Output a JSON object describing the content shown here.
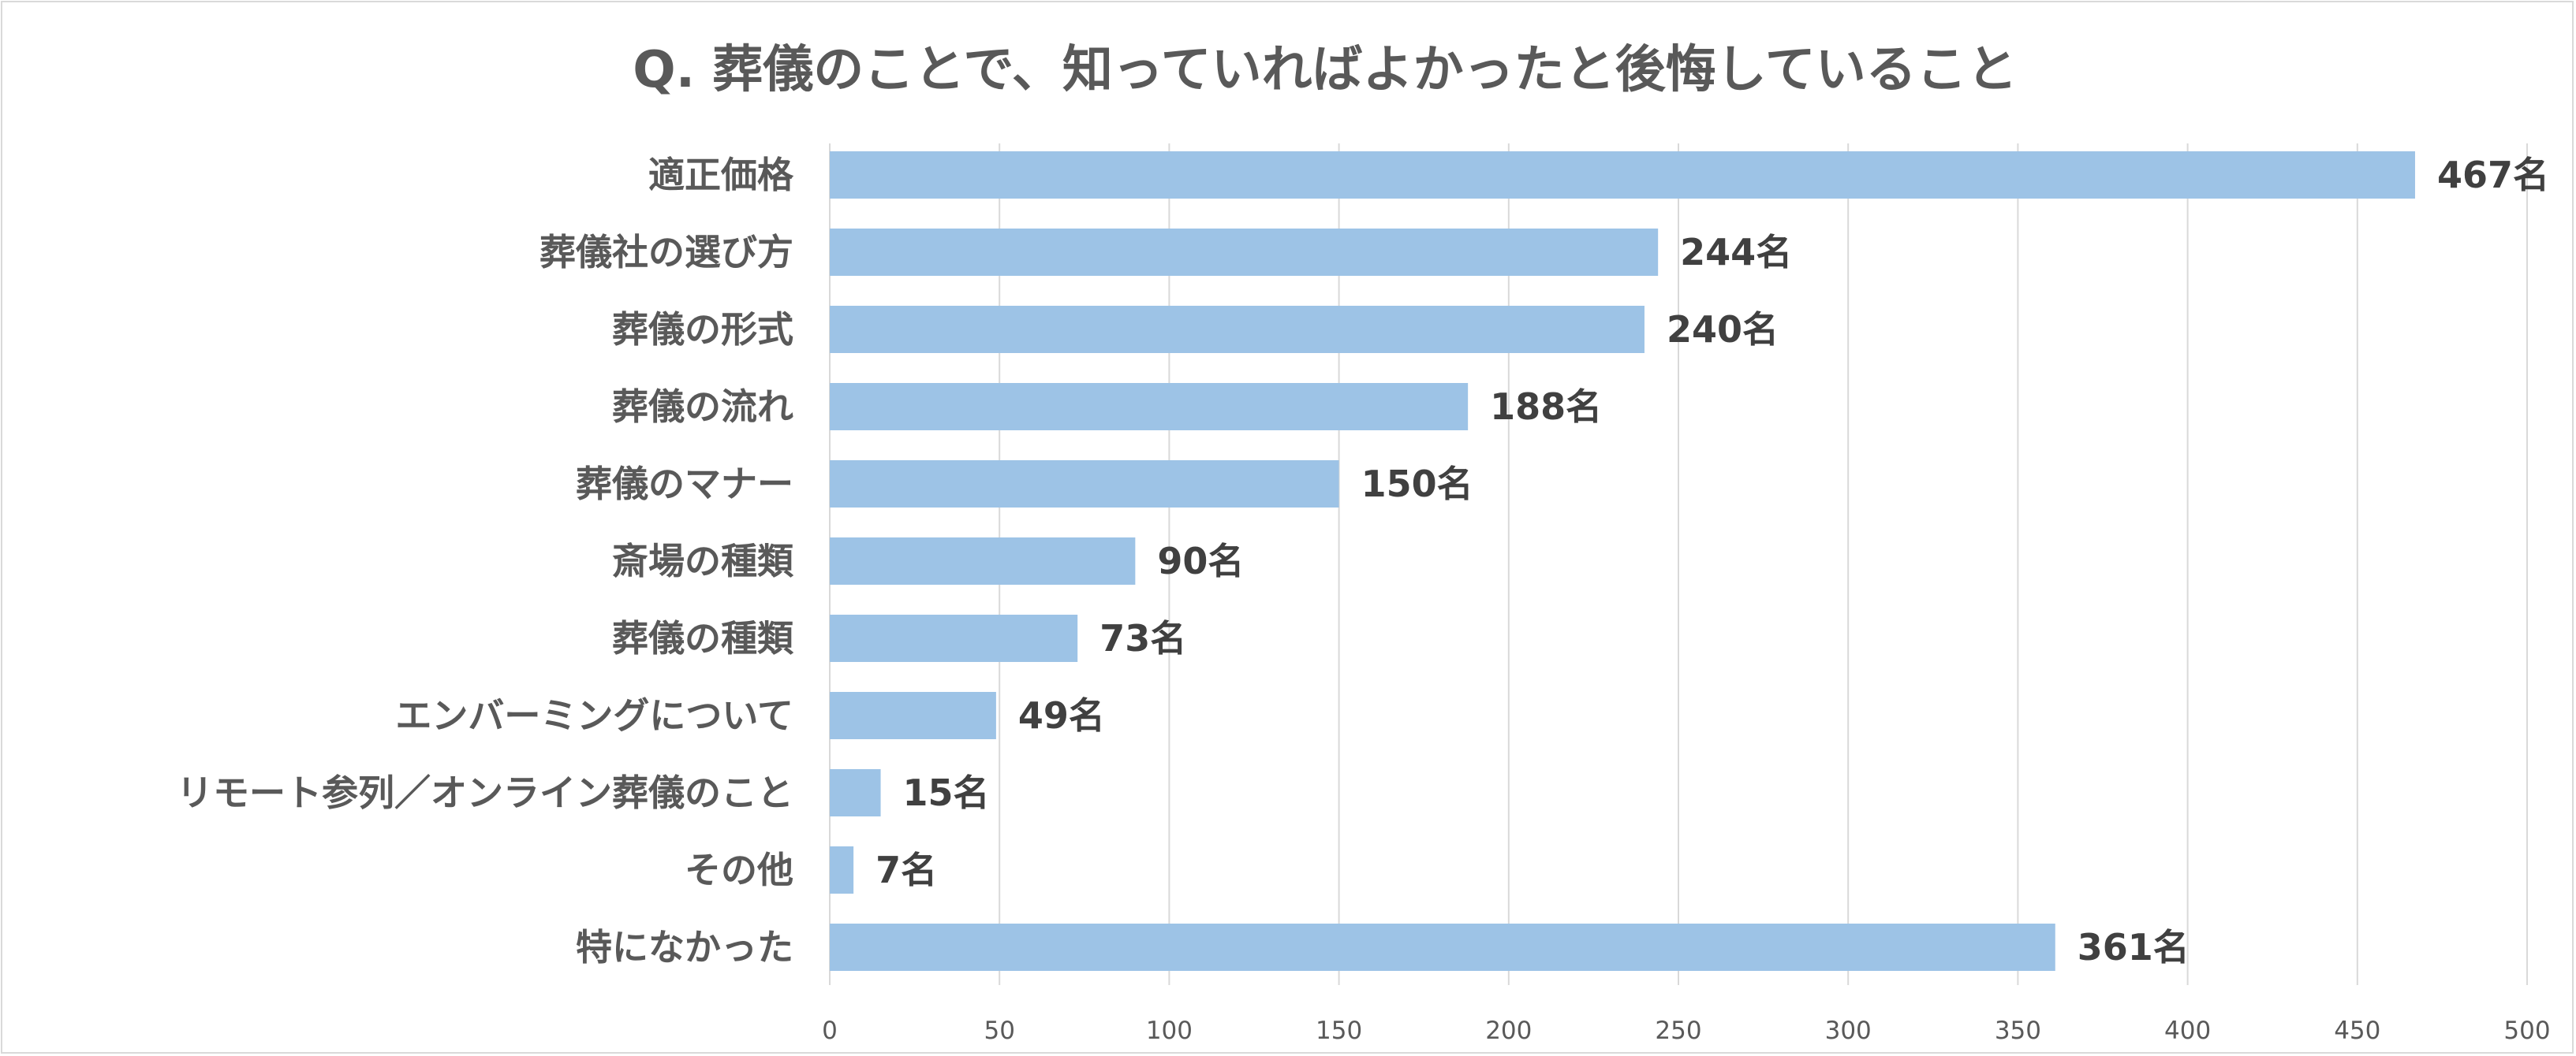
{
  "chart_data": {
    "type": "bar",
    "orientation": "horizontal",
    "title": "Q. 葬儀のことで、知っていればよかったと後悔していること",
    "categories": [
      "適正価格",
      "葬儀社の選び方",
      "葬儀の形式",
      "葬儀の流れ",
      "葬儀のマナー",
      "斎場の種類",
      "葬儀の種類",
      "エンバーミングについて",
      "リモート参列／オンライン葬儀のこと",
      "その他",
      "特になかった"
    ],
    "values": [
      467,
      244,
      240,
      188,
      150,
      90,
      73,
      49,
      15,
      7,
      361
    ],
    "data_labels": [
      "467名",
      "244名",
      "240名",
      "188名",
      "150名",
      "90名",
      "73名",
      "49名",
      "15名",
      "7名",
      "361名"
    ],
    "xlim": [
      0,
      500
    ],
    "xticks": [
      0,
      50,
      100,
      150,
      200,
      250,
      300,
      350,
      400,
      450,
      500
    ],
    "xlabel": "",
    "ylabel": "",
    "grid": true,
    "legend": "none",
    "bar_color": "#9dc3e6"
  }
}
